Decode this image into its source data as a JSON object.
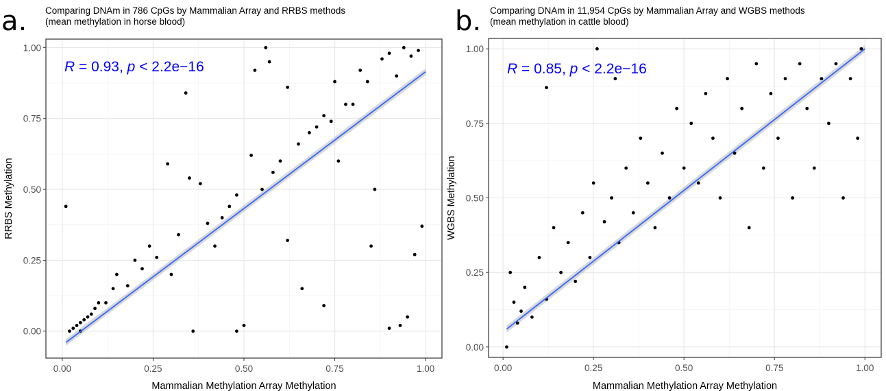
{
  "chart_data": [
    {
      "type": "scatter",
      "panel_label": "a.",
      "title": "Comparing DNAm in 786 CpGs by Mammalian Array and RRBS methods",
      "subtitle": "(mean methylation in horse blood)",
      "xlabel": "Mammalian Methylation Array Methylation",
      "ylabel": "RRBS Methylation",
      "xlim": [
        -0.045,
        1.045
      ],
      "ylim": [
        -0.095,
        1.03
      ],
      "xticks": [
        0.0,
        0.25,
        0.5,
        0.75,
        1.0
      ],
      "xtick_labels": [
        "0.00",
        "0.25",
        "0.50",
        "0.75",
        "1.00"
      ],
      "yticks": [
        0.0,
        0.25,
        0.5,
        0.75,
        1.0
      ],
      "ytick_labels": [
        "0.00",
        "0.25",
        "0.50",
        "0.75",
        "1.00"
      ],
      "grid": true,
      "stat_label_prefix": "R",
      "stat_label_text": " = 0.93, ",
      "stat_label_p": "p",
      "stat_label_rest": " < 2.2e−16",
      "stat_color": "#0000ff",
      "point_color": "#000000",
      "fit_line": {
        "x": [
          0.01,
          1.0
        ],
        "y": [
          -0.04,
          0.915
        ],
        "color": "#3366ff",
        "band_color": "#bebebe"
      },
      "points": [
        [
          0.01,
          0.44
        ],
        [
          0.02,
          0.0
        ],
        [
          0.03,
          0.01
        ],
        [
          0.04,
          0.02
        ],
        [
          0.05,
          0.03
        ],
        [
          0.06,
          0.04
        ],
        [
          0.07,
          0.05
        ],
        [
          0.08,
          0.06
        ],
        [
          0.05,
          0.0
        ],
        [
          0.09,
          0.08
        ],
        [
          0.1,
          0.1
        ],
        [
          0.12,
          0.1
        ],
        [
          0.14,
          0.15
        ],
        [
          0.15,
          0.2
        ],
        [
          0.18,
          0.16
        ],
        [
          0.2,
          0.25
        ],
        [
          0.22,
          0.22
        ],
        [
          0.24,
          0.3
        ],
        [
          0.26,
          0.26
        ],
        [
          0.29,
          0.59
        ],
        [
          0.3,
          0.2
        ],
        [
          0.32,
          0.34
        ],
        [
          0.34,
          0.84
        ],
        [
          0.35,
          0.54
        ],
        [
          0.38,
          0.52
        ],
        [
          0.36,
          0.0
        ],
        [
          0.4,
          0.38
        ],
        [
          0.42,
          0.3
        ],
        [
          0.44,
          0.4
        ],
        [
          0.46,
          0.44
        ],
        [
          0.48,
          0.48
        ],
        [
          0.48,
          0.0
        ],
        [
          0.5,
          0.02
        ],
        [
          0.52,
          0.62
        ],
        [
          0.53,
          0.92
        ],
        [
          0.55,
          0.5
        ],
        [
          0.56,
          1.0
        ],
        [
          0.57,
          0.95
        ],
        [
          0.58,
          0.56
        ],
        [
          0.6,
          0.6
        ],
        [
          0.62,
          0.86
        ],
        [
          0.62,
          0.32
        ],
        [
          0.65,
          0.66
        ],
        [
          0.66,
          0.15
        ],
        [
          0.68,
          0.7
        ],
        [
          0.7,
          0.72
        ],
        [
          0.72,
          0.76
        ],
        [
          0.72,
          0.09
        ],
        [
          0.74,
          0.74
        ],
        [
          0.75,
          0.88
        ],
        [
          0.76,
          0.6
        ],
        [
          0.78,
          0.8
        ],
        [
          0.8,
          0.8
        ],
        [
          0.82,
          0.92
        ],
        [
          0.84,
          0.88
        ],
        [
          0.85,
          0.3
        ],
        [
          0.86,
          0.5
        ],
        [
          0.88,
          0.96
        ],
        [
          0.9,
          0.98
        ],
        [
          0.9,
          0.01
        ],
        [
          0.92,
          0.9
        ],
        [
          0.93,
          0.02
        ],
        [
          0.94,
          1.0
        ],
        [
          0.95,
          0.05
        ],
        [
          0.96,
          0.97
        ],
        [
          0.97,
          0.27
        ],
        [
          0.98,
          0.99
        ],
        [
          0.99,
          0.37
        ]
      ]
    },
    {
      "type": "scatter",
      "panel_label": "b.",
      "title": "Comparing DNAm in 11,954 CpGs by Mammalian Array and WGBS methods",
      "subtitle": "(mean methylation in cattle blood)",
      "xlabel": "Mammalian Methylation Array Methylation",
      "ylabel": "WGBS Methylation",
      "xlim": [
        -0.04,
        1.045
      ],
      "ylim": [
        -0.035,
        1.035
      ],
      "xticks": [
        0.0,
        0.25,
        0.5,
        0.75,
        1.0
      ],
      "xtick_labels": [
        "0.00",
        "0.25",
        "0.50",
        "0.75",
        "1.00"
      ],
      "yticks": [
        0.0,
        0.25,
        0.5,
        0.75,
        1.0
      ],
      "ytick_labels": [
        "0.00",
        "0.25",
        "0.50",
        "0.75",
        "1.00"
      ],
      "grid": true,
      "stat_label_prefix": "R",
      "stat_label_text": " = 0.85, ",
      "stat_label_p": "p",
      "stat_label_rest": " < 2.2e−16",
      "stat_color": "#0000ff",
      "point_color": "#000000",
      "fit_line": {
        "x": [
          0.01,
          1.0
        ],
        "y": [
          0.06,
          1.0
        ],
        "color": "#3366ff",
        "band_color": "#bebebe"
      },
      "points": [
        [
          0.01,
          0.0
        ],
        [
          0.02,
          0.25
        ],
        [
          0.03,
          0.15
        ],
        [
          0.04,
          0.08
        ],
        [
          0.05,
          0.12
        ],
        [
          0.06,
          0.2
        ],
        [
          0.08,
          0.1
        ],
        [
          0.1,
          0.3
        ],
        [
          0.12,
          0.16
        ],
        [
          0.12,
          0.87
        ],
        [
          0.14,
          0.4
        ],
        [
          0.16,
          0.25
        ],
        [
          0.18,
          0.35
        ],
        [
          0.2,
          0.22
        ],
        [
          0.22,
          0.45
        ],
        [
          0.24,
          0.3
        ],
        [
          0.25,
          0.55
        ],
        [
          0.26,
          1.0
        ],
        [
          0.28,
          0.42
        ],
        [
          0.3,
          0.5
        ],
        [
          0.31,
          0.9
        ],
        [
          0.32,
          0.35
        ],
        [
          0.34,
          0.6
        ],
        [
          0.36,
          0.45
        ],
        [
          0.38,
          0.7
        ],
        [
          0.4,
          0.55
        ],
        [
          0.42,
          0.4
        ],
        [
          0.44,
          0.65
        ],
        [
          0.46,
          0.5
        ],
        [
          0.48,
          0.8
        ],
        [
          0.5,
          0.6
        ],
        [
          0.52,
          0.75
        ],
        [
          0.54,
          0.55
        ],
        [
          0.56,
          0.85
        ],
        [
          0.58,
          0.7
        ],
        [
          0.6,
          0.5
        ],
        [
          0.62,
          0.9
        ],
        [
          0.64,
          0.65
        ],
        [
          0.66,
          0.8
        ],
        [
          0.68,
          0.4
        ],
        [
          0.7,
          0.95
        ],
        [
          0.72,
          0.6
        ],
        [
          0.74,
          0.85
        ],
        [
          0.76,
          0.7
        ],
        [
          0.78,
          0.9
        ],
        [
          0.8,
          0.5
        ],
        [
          0.82,
          0.95
        ],
        [
          0.84,
          0.8
        ],
        [
          0.86,
          0.6
        ],
        [
          0.88,
          0.9
        ],
        [
          0.9,
          0.75
        ],
        [
          0.92,
          0.95
        ],
        [
          0.94,
          0.5
        ],
        [
          0.96,
          0.9
        ],
        [
          0.98,
          0.7
        ],
        [
          0.99,
          1.0
        ]
      ]
    }
  ]
}
